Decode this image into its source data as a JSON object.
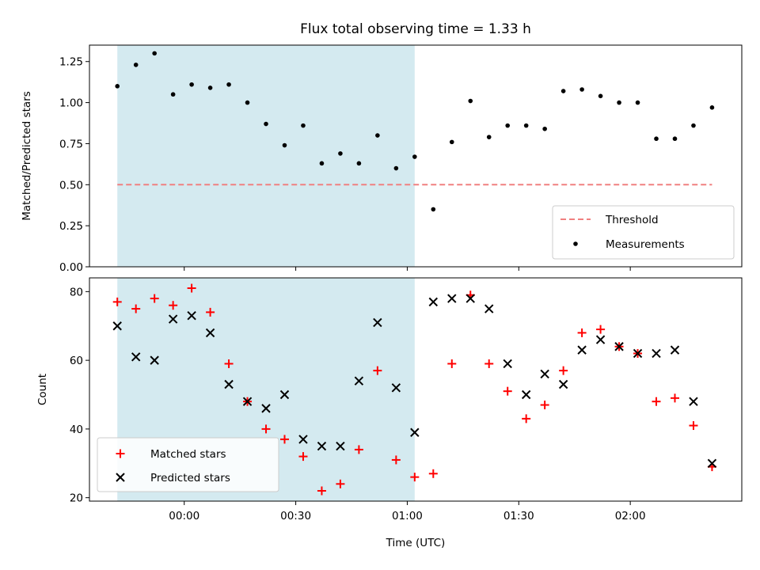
{
  "chart_data": {
    "title": "Flux total observing time = 1.33 h",
    "xlabel": "Time (UTC)",
    "x_tick_labels": [
      "00:00",
      "00:30",
      "01:00",
      "01:30",
      "02:00"
    ],
    "x_tick_minutes": [
      0,
      30,
      60,
      90,
      120
    ],
    "x_minutes": [
      -18,
      -13,
      -8,
      -3,
      2,
      7,
      12,
      17,
      22,
      27,
      32,
      37,
      42,
      47,
      52,
      57,
      62,
      67,
      72,
      77,
      82,
      87,
      92,
      97,
      102,
      107,
      112,
      117,
      122,
      127,
      132,
      137,
      142
    ],
    "shaded_region_minutes": [
      -18,
      62
    ],
    "shade_color": "#d4eaf0",
    "top_panel": {
      "type": "scatter",
      "ylabel": "Matched/Predicted stars",
      "ylim": [
        0,
        1.35
      ],
      "y_ticks": [
        "0.00",
        "0.25",
        "0.50",
        "0.75",
        "1.00",
        "1.25"
      ],
      "threshold": {
        "name": "Threshold",
        "value": 0.5,
        "color": "#f08080"
      },
      "measurements": {
        "name": "Measurements",
        "color": "#000000",
        "values": [
          1.1,
          1.23,
          1.3,
          1.05,
          1.11,
          1.09,
          1.11,
          1.0,
          0.87,
          0.74,
          0.86,
          0.63,
          0.69,
          0.63,
          0.8,
          0.6,
          0.67,
          0.35,
          0.76,
          1.01,
          0.79,
          0.86,
          0.86,
          0.84,
          1.07,
          1.08,
          1.04,
          1.0,
          1.0,
          0.78,
          0.78,
          0.86,
          0.97
        ]
      },
      "legend": [
        "Threshold",
        "Measurements"
      ],
      "legend_placement": "lower-right"
    },
    "bottom_panel": {
      "type": "scatter",
      "ylabel": "Count",
      "ylim": [
        19,
        84
      ],
      "y_ticks": [
        "20",
        "40",
        "60",
        "80"
      ],
      "series": [
        {
          "name": "Matched stars",
          "marker": "+",
          "color": "#ff0000",
          "values": [
            77,
            75,
            78,
            76,
            81,
            74,
            59,
            48,
            40,
            37,
            32,
            22,
            24,
            34,
            57,
            31,
            26,
            27,
            59,
            79,
            59,
            51,
            43,
            47,
            57,
            68,
            69,
            64,
            62,
            48,
            49,
            41,
            29
          ]
        },
        {
          "name": "Predicted stars",
          "marker": "x",
          "color": "#000000",
          "values": [
            70,
            61,
            60,
            72,
            73,
            68,
            53,
            48,
            46,
            50,
            37,
            35,
            35,
            54,
            71,
            52,
            39,
            77,
            78,
            78,
            75,
            59,
            50,
            56,
            53,
            63,
            66,
            64,
            62,
            62,
            63,
            48,
            30
          ]
        }
      ],
      "legend": [
        "Matched stars",
        "Predicted stars"
      ],
      "legend_placement": "lower-left"
    }
  }
}
